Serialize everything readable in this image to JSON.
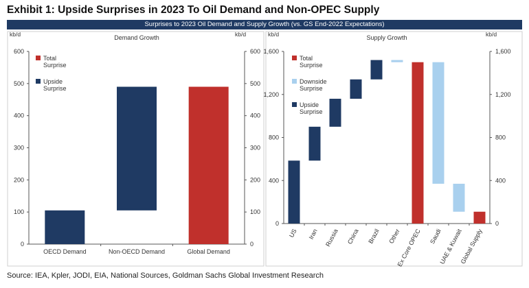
{
  "exhibit_title": "Exhibit 1: Upside Surprises in 2023 To Oil Demand and Non-OPEC Supply",
  "banner": "Surprises to 2023 Oil Demand and Supply Growth (vs. GS End-2022 Expectations)",
  "source": "Source: IEA, Kpler, JODI, EIA, National Sources, Goldman Sachs Global Investment Research",
  "colors": {
    "upside": "#1f3a63",
    "total": "#c0302c",
    "downside": "#a9d0ee"
  },
  "chart_data": [
    {
      "type": "bar",
      "subtype": "waterfall",
      "title": "Demand Growth",
      "unit_left": "kb/d",
      "unit_right": "kb/d",
      "ylim": [
        0,
        600
      ],
      "yticks": [
        0,
        100,
        200,
        300,
        400,
        500,
        600
      ],
      "categories": [
        "OECD Demand",
        "Non-OECD Demand",
        "Global Demand"
      ],
      "bars": [
        {
          "category": "OECD Demand",
          "kind": "upside",
          "start": 0,
          "end": 105
        },
        {
          "category": "Non-OECD Demand",
          "kind": "upside",
          "start": 105,
          "end": 490
        },
        {
          "category": "Global Demand",
          "kind": "total",
          "start": 0,
          "end": 490
        }
      ],
      "legend": [
        {
          "kind": "total",
          "label": "Total Surprise"
        },
        {
          "kind": "upside",
          "label": "Upside Surprise"
        }
      ],
      "legend_position": "top-left"
    },
    {
      "type": "bar",
      "subtype": "waterfall",
      "title": "Supply Growth",
      "unit_left": "kb/d",
      "unit_right": "kb/d",
      "ylim": [
        0,
        1600
      ],
      "yticks": [
        0,
        400,
        800,
        1200,
        1600
      ],
      "ytick_labels": [
        "0",
        "400",
        "800",
        "1,200",
        "1,600"
      ],
      "categories": [
        "US",
        "Iran",
        "Russia",
        "China",
        "Brazil",
        "Other",
        "Ex Core OPEC",
        "Saudi",
        "UAE & Kuwait",
        "Global Supply"
      ],
      "bars": [
        {
          "category": "US",
          "kind": "upside",
          "start": 0,
          "end": 585
        },
        {
          "category": "Iran",
          "kind": "upside",
          "start": 585,
          "end": 900
        },
        {
          "category": "Russia",
          "kind": "upside",
          "start": 900,
          "end": 1160
        },
        {
          "category": "China",
          "kind": "upside",
          "start": 1160,
          "end": 1340
        },
        {
          "category": "Brazil",
          "kind": "upside",
          "start": 1340,
          "end": 1520
        },
        {
          "category": "Other",
          "kind": "downside",
          "start": 1500,
          "end": 1520
        },
        {
          "category": "Ex Core OPEC",
          "kind": "total",
          "start": 0,
          "end": 1500
        },
        {
          "category": "Saudi",
          "kind": "downside",
          "start": 370,
          "end": 1500
        },
        {
          "category": "UAE & Kuwait",
          "kind": "downside",
          "start": 110,
          "end": 370
        },
        {
          "category": "Global Supply",
          "kind": "total",
          "start": 0,
          "end": 110
        }
      ],
      "legend": [
        {
          "kind": "total",
          "label": "Total Surprise"
        },
        {
          "kind": "downside",
          "label": "Downside Surprise"
        },
        {
          "kind": "upside",
          "label": "Upside Surprise"
        }
      ],
      "legend_position": "top-left"
    }
  ]
}
